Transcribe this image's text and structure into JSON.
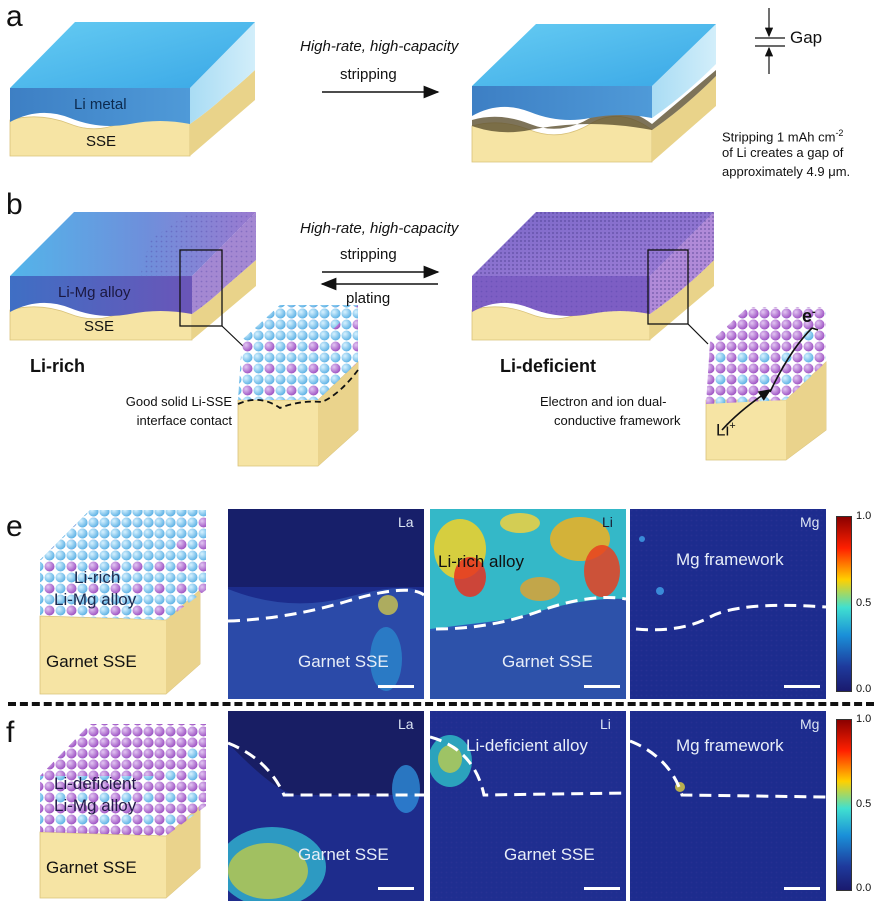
{
  "panels": {
    "a": {
      "letter": "a",
      "li_metal": "Li metal",
      "sse": "SSE",
      "arrow_top": "High-rate, high-capacity",
      "arrow_bottom": "stripping",
      "gap": "Gap",
      "note_line1": "Stripping  1 mAh cm",
      "note_sup": "-2",
      "note_line2": "of Li creates a gap of",
      "note_line3": "approximately  4.9 μm."
    },
    "b": {
      "letter": "b",
      "alloy": "Li-Mg alloy",
      "sse": "SSE",
      "arrow_top": "High-rate, high-capacity",
      "arrow_strip": "stripping",
      "arrow_plate": "plating",
      "li_rich": "Li-rich",
      "li_deficient": "Li-deficient",
      "contact_line1": "Good solid Li-SSE",
      "contact_line2": "interface contact",
      "framework_line1": "Electron and ion dual-",
      "framework_line2": "conductive framework",
      "electron": "e",
      "electron_sup": "-",
      "li_ion": "Li",
      "li_ion_sup": "+"
    },
    "e": {
      "letter": "e",
      "block_line1": "Li-rich",
      "block_line2": "Li-Mg alloy",
      "block_base": "Garnet SSE",
      "maps": [
        {
          "channel": "La",
          "top_label": "",
          "bottom_label": "Garnet SSE"
        },
        {
          "channel": "Li",
          "top_label": "Li-rich alloy",
          "bottom_label": "Garnet SSE"
        },
        {
          "channel": "Mg",
          "top_label": "Mg framework",
          "bottom_label": ""
        }
      ]
    },
    "f": {
      "letter": "f",
      "block_line1": "Li-deficient",
      "block_line2": "Li-Mg alloy",
      "block_base": "Garnet SSE",
      "maps": [
        {
          "channel": "La",
          "top_label": "",
          "bottom_label": "Garnet SSE"
        },
        {
          "channel": "Li",
          "top_label": "Li-deficient alloy",
          "bottom_label": "Garnet SSE"
        },
        {
          "channel": "Mg",
          "top_label": "Mg framework",
          "bottom_label": ""
        }
      ]
    }
  },
  "colorbar": {
    "ticks": [
      "1.0",
      "0.5",
      "0.0"
    ],
    "colors": [
      "#8b0000",
      "#ff2000",
      "#ffd000",
      "#40e0d0",
      "#1a8fd8",
      "#1e3a9c",
      "#1a1a6e"
    ]
  },
  "colors": {
    "li_metal_top": "#5cc3ee",
    "li_metal_side": "#3e86c8",
    "sse": "#f6e4a4",
    "sse_dark": "#e7cf7e",
    "alloy_purple": "#7a5cc0",
    "map_bg": "#1d2d8f"
  }
}
